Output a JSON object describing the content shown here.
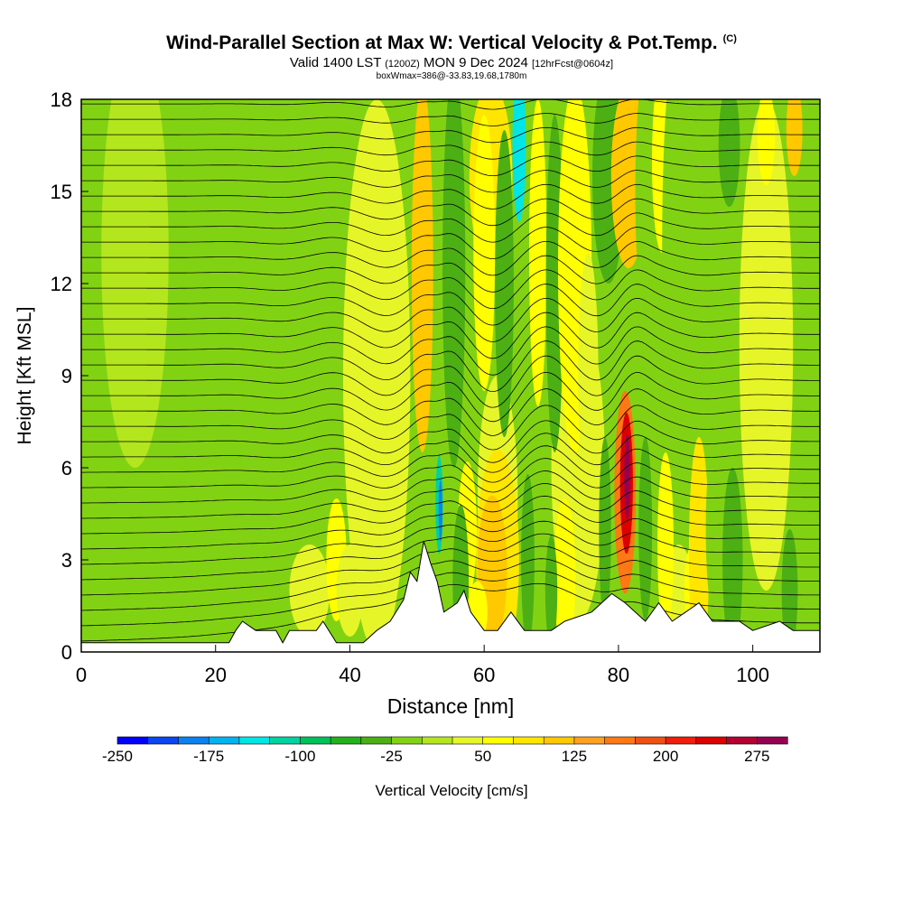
{
  "title": {
    "main": "Wind-Parallel Section at Max W: Vertical Velocity & Pot.Temp.",
    "copyright": "(C)",
    "valid_prefix": "Valid 1400 LST",
    "valid_z": "(1200Z)",
    "valid_date": "MON 9 Dec 2024",
    "forecast": "[12hrFcst@0604z]",
    "box_info": "boxWmax=386@-33.83,19.68,1780m"
  },
  "chart_data": {
    "type": "heatmap",
    "xlabel": "Distance [nm]",
    "ylabel": "Height [Kft MSL]",
    "xlim": [
      0,
      110
    ],
    "ylim": [
      0,
      18
    ],
    "x_ticks": [
      0,
      20,
      40,
      60,
      80,
      100
    ],
    "y_ticks": [
      0,
      3,
      6,
      9,
      12,
      15,
      18
    ],
    "colorbar": {
      "label": "Vertical Velocity [cm/s]",
      "min": -250,
      "max": 300,
      "step": 25,
      "tick_labels": [
        -250,
        -175,
        -100,
        -25,
        50,
        125,
        200,
        275
      ],
      "colors": [
        "#0000ff",
        "#0a46f2",
        "#0a82f0",
        "#00b4f0",
        "#00e6e6",
        "#00d2a0",
        "#00c25a",
        "#22b21a",
        "#4caf14",
        "#82d214",
        "#b4e61e",
        "#e6f528",
        "#ffff00",
        "#ffe600",
        "#ffc800",
        "#ffa01e",
        "#ff7814",
        "#f05014",
        "#f01e0a",
        "#dc0000",
        "#b40032",
        "#960050"
      ]
    },
    "terrain_kft": [
      [
        0,
        0.3
      ],
      [
        22,
        0.3
      ],
      [
        23,
        0.7
      ],
      [
        24,
        1.0
      ],
      [
        26,
        0.7
      ],
      [
        29,
        0.7
      ],
      [
        30,
        0.3
      ],
      [
        31,
        0.7
      ],
      [
        35,
        0.7
      ],
      [
        36,
        1.0
      ],
      [
        38,
        0.3
      ],
      [
        42,
        0.3
      ],
      [
        44,
        0.7
      ],
      [
        46,
        1.0
      ],
      [
        48,
        1.7
      ],
      [
        49,
        2.6
      ],
      [
        50,
        2.3
      ],
      [
        51,
        3.6
      ],
      [
        52,
        2.9
      ],
      [
        53,
        2.3
      ],
      [
        54,
        1.3
      ],
      [
        56,
        1.6
      ],
      [
        57,
        2.0
      ],
      [
        58,
        1.3
      ],
      [
        60,
        0.7
      ],
      [
        62,
        0.7
      ],
      [
        64,
        1.3
      ],
      [
        66,
        0.7
      ],
      [
        70,
        0.7
      ],
      [
        72,
        1.0
      ],
      [
        76,
        1.3
      ],
      [
        79,
        1.9
      ],
      [
        81,
        1.6
      ],
      [
        84,
        1.0
      ],
      [
        86,
        1.6
      ],
      [
        88,
        1.0
      ],
      [
        90,
        1.3
      ],
      [
        92,
        1.6
      ],
      [
        94,
        1.0
      ],
      [
        98,
        1.0
      ],
      [
        100,
        0.7
      ],
      [
        104,
        1.0
      ],
      [
        106,
        0.7
      ],
      [
        110,
        0.7
      ]
    ],
    "max_updraft": {
      "distance_nm": 81,
      "height_kft": 6.3,
      "value_cms": 300
    },
    "min_downdraft": {
      "distance_nm": 65,
      "height_kft": 17.5,
      "value_cms": -150
    },
    "isentrope_count": 36
  }
}
